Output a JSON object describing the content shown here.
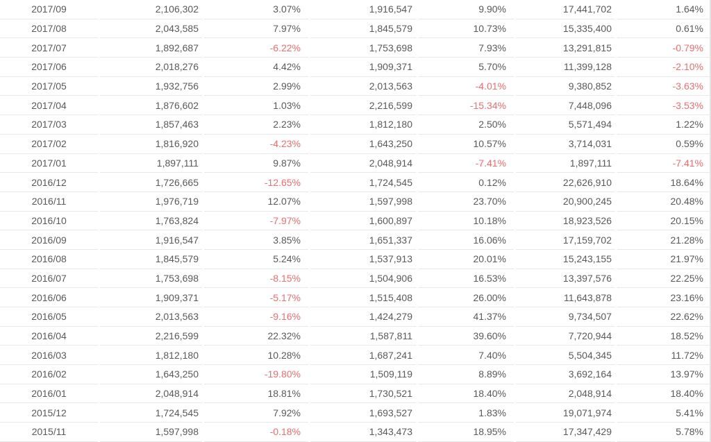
{
  "colors": {
    "text": "#595959",
    "negative_value": "#f56c6c",
    "row_separator": "#e7e7e7"
  },
  "table": {
    "rows": [
      [
        "2017/09",
        "2,106,302",
        "3.07%",
        "1,916,547",
        "9.90%",
        "17,441,702",
        "1.64%"
      ],
      [
        "2017/08",
        "2,043,585",
        "7.97%",
        "1,845,579",
        "10.73%",
        "15,335,400",
        "0.61%"
      ],
      [
        "2017/07",
        "1,892,687",
        "-6.22%",
        "1,753,698",
        "7.93%",
        "13,291,815",
        "-0.79%"
      ],
      [
        "2017/06",
        "2,018,276",
        "4.42%",
        "1,909,371",
        "5.70%",
        "11,399,128",
        "-2.10%"
      ],
      [
        "2017/05",
        "1,932,756",
        "2.99%",
        "2,013,563",
        "-4.01%",
        "9,380,852",
        "-3.63%"
      ],
      [
        "2017/04",
        "1,876,602",
        "1.03%",
        "2,216,599",
        "-15.34%",
        "7,448,096",
        "-3.53%"
      ],
      [
        "2017/03",
        "1,857,463",
        "2.23%",
        "1,812,180",
        "2.50%",
        "5,571,494",
        "1.22%"
      ],
      [
        "2017/02",
        "1,816,920",
        "-4.23%",
        "1,643,250",
        "10.57%",
        "3,714,031",
        "0.59%"
      ],
      [
        "2017/01",
        "1,897,111",
        "9.87%",
        "2,048,914",
        "-7.41%",
        "1,897,111",
        "-7.41%"
      ],
      [
        "2016/12",
        "1,726,665",
        "-12.65%",
        "1,724,545",
        "0.12%",
        "22,626,910",
        "18.64%"
      ],
      [
        "2016/11",
        "1,976,719",
        "12.07%",
        "1,597,998",
        "23.70%",
        "20,900,245",
        "20.48%"
      ],
      [
        "2016/10",
        "1,763,824",
        "-7.97%",
        "1,600,897",
        "10.18%",
        "18,923,526",
        "20.15%"
      ],
      [
        "2016/09",
        "1,916,547",
        "3.85%",
        "1,651,337",
        "16.06%",
        "17,159,702",
        "21.28%"
      ],
      [
        "2016/08",
        "1,845,579",
        "5.24%",
        "1,537,913",
        "20.01%",
        "15,243,155",
        "21.97%"
      ],
      [
        "2016/07",
        "1,753,698",
        "-8.15%",
        "1,504,906",
        "16.53%",
        "13,397,576",
        "22.25%"
      ],
      [
        "2016/06",
        "1,909,371",
        "-5.17%",
        "1,515,408",
        "26.00%",
        "11,643,878",
        "23.16%"
      ],
      [
        "2016/05",
        "2,013,563",
        "-9.16%",
        "1,424,279",
        "41.37%",
        "9,734,507",
        "22.62%"
      ],
      [
        "2016/04",
        "2,216,599",
        "22.32%",
        "1,587,811",
        "39.60%",
        "7,720,944",
        "18.52%"
      ],
      [
        "2016/03",
        "1,812,180",
        "10.28%",
        "1,687,241",
        "7.40%",
        "5,504,345",
        "11.72%"
      ],
      [
        "2016/02",
        "1,643,250",
        "-19.80%",
        "1,509,119",
        "8.89%",
        "3,692,164",
        "13.97%"
      ],
      [
        "2016/01",
        "2,048,914",
        "18.81%",
        "1,730,521",
        "18.40%",
        "2,048,914",
        "18.40%"
      ],
      [
        "2015/12",
        "1,724,545",
        "7.92%",
        "1,693,527",
        "1.83%",
        "19,071,974",
        "5.41%"
      ],
      [
        "2015/11",
        "1,597,998",
        "-0.18%",
        "1,343,473",
        "18.95%",
        "17,347,429",
        "5.78%"
      ]
    ]
  }
}
